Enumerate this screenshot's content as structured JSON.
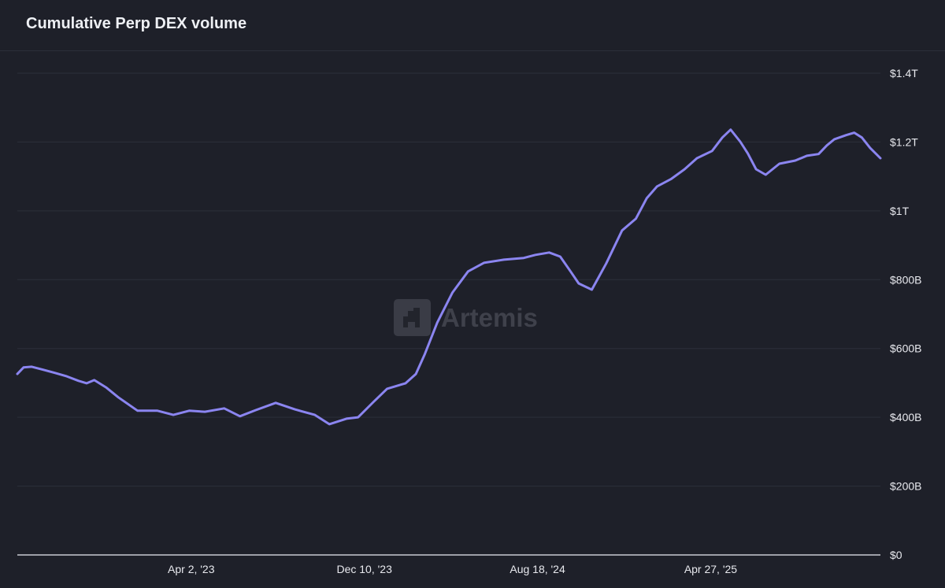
{
  "title": "Cumulative Perp DEX volume",
  "watermark": "Artemis",
  "colors": {
    "background": "#1e2029",
    "line": "#8b85f0",
    "grid": "#2c2f3a",
    "axis_text": "#e8e9ee"
  },
  "chart_data": {
    "type": "line",
    "title": "Cumulative Perp DEX volume",
    "xlabel": "",
    "ylabel": "",
    "x_range": [
      "2022-07-23",
      "2025-12-30"
    ],
    "ylim": [
      0,
      1400000000000
    ],
    "y_axis_position": "right",
    "grid": true,
    "x_ticks": [
      {
        "date": "2023-04-02",
        "label": "Apr 2, '23"
      },
      {
        "date": "2023-12-10",
        "label": "Dec 10, '23"
      },
      {
        "date": "2024-08-18",
        "label": "Aug 18, '24"
      },
      {
        "date": "2025-04-27",
        "label": "Apr 27, '25"
      }
    ],
    "y_ticks": [
      {
        "value": 0,
        "label": "$0"
      },
      {
        "value": 200000000000,
        "label": "$200B"
      },
      {
        "value": 400000000000,
        "label": "$400B"
      },
      {
        "value": 600000000000,
        "label": "$600B"
      },
      {
        "value": 800000000000,
        "label": "$800B"
      },
      {
        "value": 1000000000000,
        "label": "$1T"
      },
      {
        "value": 1200000000000,
        "label": "$1.2T"
      },
      {
        "value": 1400000000000,
        "label": "$1.4T"
      }
    ],
    "series": [
      {
        "unit": "USD billions",
        "points": [
          [
            "2022-07-23",
            526
          ],
          [
            "2022-08-01",
            545
          ],
          [
            "2022-08-13",
            547
          ],
          [
            "2022-08-30",
            538
          ],
          [
            "2022-09-16",
            529
          ],
          [
            "2022-10-03",
            519
          ],
          [
            "2022-10-20",
            506
          ],
          [
            "2022-11-01",
            499
          ],
          [
            "2022-11-12",
            508
          ],
          [
            "2022-11-29",
            487
          ],
          [
            "2022-12-17",
            458
          ],
          [
            "2023-01-14",
            419
          ],
          [
            "2023-02-12",
            419
          ],
          [
            "2023-03-07",
            407
          ],
          [
            "2023-03-30",
            419
          ],
          [
            "2023-04-22",
            416
          ],
          [
            "2023-05-20",
            426
          ],
          [
            "2023-06-12",
            403
          ],
          [
            "2023-07-05",
            421
          ],
          [
            "2023-08-03",
            442
          ],
          [
            "2023-08-31",
            423
          ],
          [
            "2023-09-29",
            407
          ],
          [
            "2023-10-20",
            380
          ],
          [
            "2023-11-14",
            396
          ],
          [
            "2023-12-01",
            400
          ],
          [
            "2023-12-24",
            446
          ],
          [
            "2024-01-12",
            483
          ],
          [
            "2024-02-08",
            499
          ],
          [
            "2024-02-23",
            526
          ],
          [
            "2024-03-07",
            584
          ],
          [
            "2024-03-25",
            675
          ],
          [
            "2024-04-16",
            762
          ],
          [
            "2024-05-09",
            824
          ],
          [
            "2024-06-01",
            849
          ],
          [
            "2024-06-30",
            858
          ],
          [
            "2024-07-29",
            863
          ],
          [
            "2024-08-15",
            872
          ],
          [
            "2024-09-04",
            879
          ],
          [
            "2024-09-20",
            867
          ],
          [
            "2024-10-05",
            824
          ],
          [
            "2024-10-17",
            789
          ],
          [
            "2024-11-05",
            771
          ],
          [
            "2024-11-26",
            847
          ],
          [
            "2024-12-19",
            943
          ],
          [
            "2025-01-08",
            977
          ],
          [
            "2025-01-24",
            1037
          ],
          [
            "2025-02-08",
            1071
          ],
          [
            "2025-02-28",
            1092
          ],
          [
            "2025-03-20",
            1121
          ],
          [
            "2025-04-07",
            1153
          ],
          [
            "2025-04-29",
            1174
          ],
          [
            "2025-05-14",
            1213
          ],
          [
            "2025-05-26",
            1236
          ],
          [
            "2025-06-09",
            1201
          ],
          [
            "2025-06-20",
            1167
          ],
          [
            "2025-07-02",
            1121
          ],
          [
            "2025-07-16",
            1105
          ],
          [
            "2025-08-05",
            1137
          ],
          [
            "2025-08-28",
            1146
          ],
          [
            "2025-09-14",
            1160
          ],
          [
            "2025-10-01",
            1165
          ],
          [
            "2025-10-13",
            1190
          ],
          [
            "2025-10-24",
            1208
          ],
          [
            "2025-11-10",
            1220
          ],
          [
            "2025-11-22",
            1227
          ],
          [
            "2025-12-03",
            1213
          ],
          [
            "2025-12-15",
            1183
          ],
          [
            "2025-12-30",
            1153
          ]
        ]
      }
    ]
  }
}
